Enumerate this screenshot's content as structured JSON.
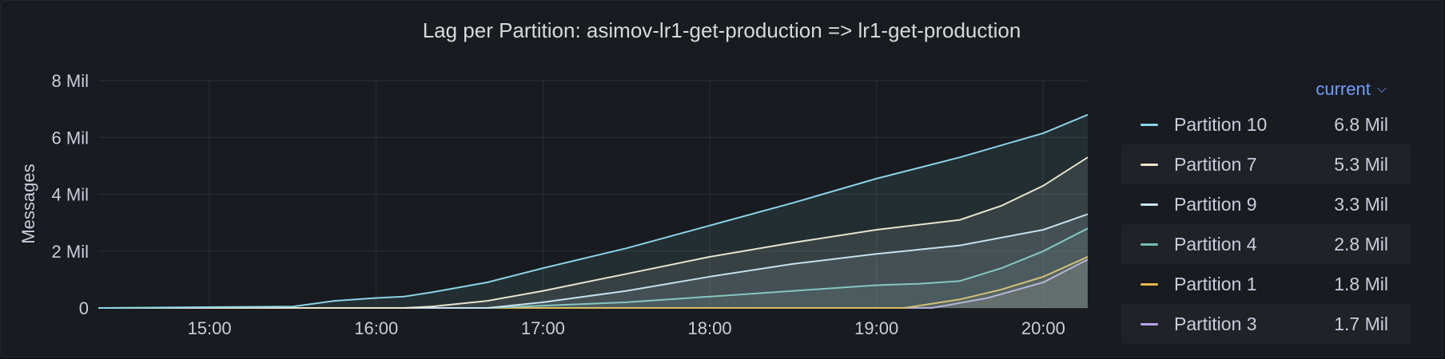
{
  "panel": {
    "title": "Lag per Partition: asimov-lr1-get-production => lr1-get-production"
  },
  "legend": {
    "header_label": "current",
    "header_icon": "chevron-down-icon"
  },
  "chart_data": {
    "type": "area",
    "title": "Lag per Partition: asimov-lr1-get-production => lr1-get-production",
    "xlabel": "",
    "ylabel": "Messages",
    "x_range": [
      "14:20",
      "20:16"
    ],
    "x_ticks": [
      "15:00",
      "16:00",
      "17:00",
      "18:00",
      "19:00",
      "20:00"
    ],
    "y_range": [
      0,
      8000000
    ],
    "y_ticks": [
      {
        "value": 0,
        "label": "0"
      },
      {
        "value": 2000000,
        "label": "2 Mil"
      },
      {
        "value": 4000000,
        "label": "4 Mil"
      },
      {
        "value": 6000000,
        "label": "6 Mil"
      },
      {
        "value": 8000000,
        "label": "8 Mil"
      }
    ],
    "grid": true,
    "legend_position": "right",
    "series": [
      {
        "name": "Partition 10",
        "current": "6.8 Mil",
        "color": "#8ad4e6",
        "points": [
          [
            "14:20",
            0
          ],
          [
            "15:30",
            0.05
          ],
          [
            "15:45",
            0.25
          ],
          [
            "16:00",
            0.35
          ],
          [
            "16:10",
            0.4
          ],
          [
            "16:20",
            0.55
          ],
          [
            "16:40",
            0.9
          ],
          [
            "17:00",
            1.4
          ],
          [
            "17:30",
            2.1
          ],
          [
            "18:00",
            2.9
          ],
          [
            "18:30",
            3.7
          ],
          [
            "19:00",
            4.55
          ],
          [
            "19:30",
            5.3
          ],
          [
            "20:00",
            6.15
          ],
          [
            "20:16",
            6.8
          ]
        ]
      },
      {
        "name": "Partition 7",
        "current": "5.3 Mil",
        "color": "#f2e6cf",
        "points": [
          [
            "14:20",
            0
          ],
          [
            "16:10",
            0
          ],
          [
            "16:20",
            0.05
          ],
          [
            "16:40",
            0.25
          ],
          [
            "17:00",
            0.6
          ],
          [
            "17:30",
            1.2
          ],
          [
            "18:00",
            1.8
          ],
          [
            "18:30",
            2.3
          ],
          [
            "19:00",
            2.75
          ],
          [
            "19:30",
            3.1
          ],
          [
            "19:45",
            3.6
          ],
          [
            "20:00",
            4.3
          ],
          [
            "20:16",
            5.3
          ]
        ]
      },
      {
        "name": "Partition 9",
        "current": "3.3 Mil",
        "color": "#c9e4f5",
        "points": [
          [
            "14:20",
            0
          ],
          [
            "16:40",
            0
          ],
          [
            "17:00",
            0.2
          ],
          [
            "17:30",
            0.6
          ],
          [
            "18:00",
            1.1
          ],
          [
            "18:30",
            1.55
          ],
          [
            "19:00",
            1.9
          ],
          [
            "19:30",
            2.2
          ],
          [
            "20:00",
            2.75
          ],
          [
            "20:16",
            3.3
          ]
        ]
      },
      {
        "name": "Partition 4",
        "current": "2.8 Mil",
        "color": "#73bfb8",
        "points": [
          [
            "14:20",
            0
          ],
          [
            "16:40",
            0
          ],
          [
            "17:00",
            0.08
          ],
          [
            "17:30",
            0.2
          ],
          [
            "18:00",
            0.4
          ],
          [
            "18:30",
            0.6
          ],
          [
            "19:00",
            0.8
          ],
          [
            "19:15",
            0.85
          ],
          [
            "19:30",
            0.95
          ],
          [
            "19:45",
            1.4
          ],
          [
            "20:00",
            2.0
          ],
          [
            "20:16",
            2.8
          ]
        ]
      },
      {
        "name": "Partition 1",
        "current": "1.8 Mil",
        "color": "#e8b84a",
        "points": [
          [
            "14:20",
            0
          ],
          [
            "19:10",
            0
          ],
          [
            "19:30",
            0.3
          ],
          [
            "19:45",
            0.65
          ],
          [
            "20:00",
            1.1
          ],
          [
            "20:16",
            1.8
          ]
        ]
      },
      {
        "name": "Partition 3",
        "current": "1.7 Mil",
        "color": "#b6a3e8",
        "points": [
          [
            "14:20",
            0
          ],
          [
            "19:20",
            0
          ],
          [
            "19:40",
            0.35
          ],
          [
            "20:00",
            0.9
          ],
          [
            "20:16",
            1.7
          ]
        ]
      }
    ]
  }
}
